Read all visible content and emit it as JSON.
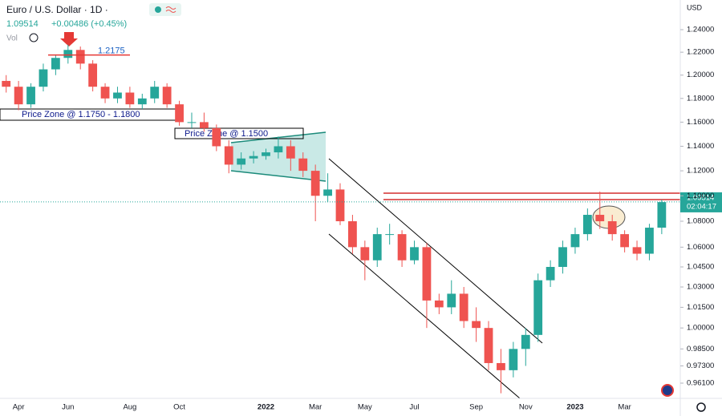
{
  "chart_data": {
    "type": "candlestick",
    "title": "Euro / U.S. Dollar · 1D ·",
    "last_price": 1.09514,
    "change": "+0.00486 (+0.45%)",
    "volume_label": "Vol",
    "currency": "USD",
    "countdown": "02:04:17",
    "marker_level": 1.2175,
    "zone_labels": [
      "Price Zone @ 1.1750 - 1.1800",
      "Price Zone @ 1.1500"
    ],
    "log_scale": true,
    "grid": false,
    "up_color": "#26a69a",
    "down_color": "#ef5350",
    "categories": [
      null,
      "Apr",
      null,
      null,
      null,
      "Jun",
      null,
      null,
      null,
      null,
      "Aug",
      null,
      null,
      null,
      "Oct",
      null,
      null,
      null,
      null,
      null,
      null,
      "2022",
      null,
      null,
      null,
      "Mar",
      null,
      null,
      null,
      "May",
      null,
      null,
      null,
      "Jul",
      null,
      null,
      null,
      null,
      "Sep",
      null,
      null,
      null,
      "Nov",
      null,
      null,
      null,
      "2023",
      null,
      null,
      null,
      "Mar",
      null,
      null,
      null
    ],
    "open": [
      1.195,
      1.19,
      1.175,
      1.19,
      1.205,
      1.215,
      1.222,
      1.21,
      1.19,
      1.18,
      1.185,
      1.175,
      1.18,
      1.19,
      1.175,
      1.16,
      1.16,
      1.155,
      1.14,
      1.125,
      1.13,
      1.132,
      1.135,
      1.14,
      1.13,
      1.12,
      1.1,
      1.105,
      1.08,
      1.06,
      1.05,
      1.07,
      1.07,
      1.05,
      1.06,
      1.02,
      1.015,
      1.025,
      1.005,
      1.0,
      0.975,
      0.97,
      0.985,
      0.995,
      1.035,
      1.045,
      1.06,
      1.07,
      1.085,
      1.08,
      1.07,
      1.06,
      1.055,
      1.075
    ],
    "high": [
      1.2,
      1.195,
      1.193,
      1.21,
      1.218,
      1.2266,
      1.225,
      1.213,
      1.193,
      1.19,
      1.19,
      1.184,
      1.195,
      1.193,
      1.178,
      1.168,
      1.168,
      1.158,
      1.145,
      1.135,
      1.136,
      1.138,
      1.148,
      1.145,
      1.135,
      1.125,
      1.118,
      1.11,
      1.085,
      1.065,
      1.075,
      1.078,
      1.073,
      1.065,
      1.063,
      1.025,
      1.035,
      1.03,
      1.015,
      1.005,
      0.985,
      0.99,
      1.0,
      1.04,
      1.05,
      1.065,
      1.075,
      1.09,
      1.1033,
      1.085,
      1.073,
      1.065,
      1.078,
      1.097
    ],
    "low": [
      1.185,
      1.17,
      1.172,
      1.186,
      1.2,
      1.21,
      1.205,
      1.186,
      1.176,
      1.176,
      1.172,
      1.171,
      1.176,
      1.172,
      1.157,
      1.155,
      1.152,
      1.136,
      1.118,
      1.121,
      1.126,
      1.129,
      1.13,
      1.12,
      1.115,
      1.08,
      1.095,
      1.077,
      1.055,
      1.035,
      1.045,
      1.062,
      1.045,
      1.047,
      1.0,
      1.01,
      1.01,
      1.0,
      0.99,
      0.97,
      0.954,
      0.965,
      0.973,
      0.99,
      1.03,
      1.04,
      1.055,
      1.065,
      1.074,
      1.065,
      1.056,
      1.05,
      1.05,
      1.07
    ],
    "close": [
      1.19,
      1.175,
      1.19,
      1.205,
      1.215,
      1.222,
      1.21,
      1.19,
      1.18,
      1.185,
      1.175,
      1.18,
      1.19,
      1.175,
      1.16,
      1.16,
      1.155,
      1.14,
      1.125,
      1.13,
      1.132,
      1.135,
      1.14,
      1.13,
      1.12,
      1.1,
      1.105,
      1.08,
      1.06,
      1.05,
      1.07,
      1.07,
      1.05,
      1.06,
      1.02,
      1.015,
      1.025,
      1.005,
      1.0,
      0.975,
      0.97,
      0.985,
      0.995,
      1.035,
      1.045,
      1.06,
      1.07,
      1.085,
      1.08,
      1.07,
      1.06,
      1.055,
      1.075,
      1.095
    ],
    "ylim": [
      0.9505,
      1.2668
    ],
    "yticks": [
      {
        "value": 1.24,
        "label": "1.24000"
      },
      {
        "value": 1.22,
        "label": "1.22000"
      },
      {
        "value": 1.2,
        "label": "1.20000"
      },
      {
        "value": 1.18,
        "label": "1.18000"
      },
      {
        "value": 1.16,
        "label": "1.16000"
      },
      {
        "value": 1.14,
        "label": "1.14000"
      },
      {
        "value": 1.12,
        "label": "1.12000"
      },
      {
        "value": 1.1,
        "label": "1.10000"
      },
      {
        "value": 1.08,
        "label": "1.08000"
      },
      {
        "value": 1.06,
        "label": "1.06000"
      },
      {
        "value": 1.045,
        "label": "1.04500"
      },
      {
        "value": 1.03,
        "label": "1.03000"
      },
      {
        "value": 1.015,
        "label": "1.01500"
      },
      {
        "value": 1.0,
        "label": "1.00000"
      },
      {
        "value": 0.985,
        "label": "0.98500"
      },
      {
        "value": 0.973,
        "label": "0.97300"
      },
      {
        "value": 0.961,
        "label": "0.96100"
      }
    ]
  }
}
